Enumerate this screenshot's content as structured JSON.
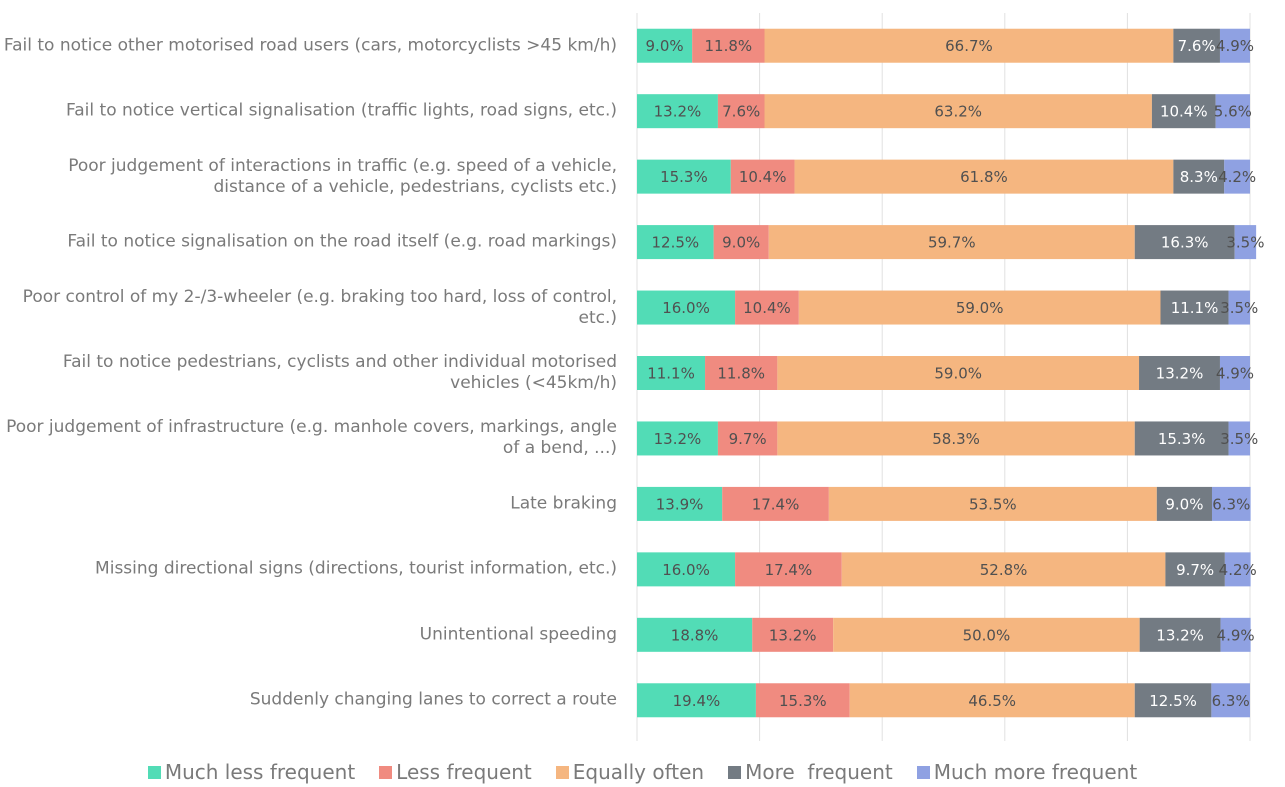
{
  "chart_data": {
    "type": "stacked_barh",
    "categories": [
      "Fail to notice other motorised road users (cars, motorcyclists >45 km/h)",
      "Fail to notice vertical signalisation (traffic lights, road signs, etc.)",
      "Poor judgement of interactions in traffic (e.g. speed of a vehicle, distance of a vehicle, pedestrians, cyclists etc.)",
      "Fail to notice signalisation on the road itself (e.g. road markings)",
      "Poor control of my 2-/3-wheeler (e.g. braking too hard, loss of control, etc.)",
      "Fail to notice pedestrians, cyclists and other individual motorised vehicles (<45km/h)",
      "Poor judgement of infrastructure (e.g. manhole covers, markings, angle of a bend, ...)",
      "Late braking",
      "Missing directional signs (directions, tourist information, etc.)",
      "Unintentional speeding",
      "Suddenly changing lanes to correct a route"
    ],
    "series": [
      {
        "name": "Much less frequent",
        "color": "#52dcb6",
        "values": [
          9.0,
          13.2,
          15.3,
          12.5,
          16.0,
          11.1,
          13.2,
          13.9,
          16.0,
          18.8,
          19.4
        ],
        "value_labels": [
          "9.0%",
          "13.2%",
          "15.3%",
          "12.5%",
          "16.0%",
          "11.1%",
          "13.2%",
          "13.9%",
          "16.0%",
          "18.8%",
          "19.4%"
        ]
      },
      {
        "name": "Less frequent",
        "color": "#f08b80",
        "values": [
          11.8,
          7.6,
          10.4,
          9.0,
          10.4,
          11.8,
          9.7,
          17.4,
          17.4,
          13.2,
          15.3
        ],
        "value_labels": [
          "11.8%",
          "7.6%",
          "10.4%",
          "9.0%",
          "10.4%",
          "11.8%",
          "9.7%",
          "17.4%",
          "17.4%",
          "13.2%",
          "15.3%"
        ]
      },
      {
        "name": "Equally often",
        "color": "#f5b680",
        "values": [
          66.7,
          63.2,
          61.8,
          59.7,
          59.0,
          59.0,
          58.3,
          53.5,
          52.8,
          50.0,
          46.5
        ],
        "value_labels": [
          "66.7%",
          "63.2%",
          "61.8%",
          "59.7%",
          "59.0%",
          "59.0%",
          "58.3%",
          "53.5%",
          "52.8%",
          "50.0%",
          "46.5%"
        ]
      },
      {
        "name": "More  frequent",
        "color": "#737b83",
        "values": [
          7.6,
          10.4,
          8.3,
          16.3,
          11.1,
          13.2,
          15.3,
          9.0,
          9.7,
          13.2,
          12.5
        ],
        "value_labels": [
          "7.6%",
          "10.4%",
          "8.3%",
          "16.3%",
          "11.1%",
          "13.2%",
          "15.3%",
          "9.0%",
          "9.7%",
          "13.2%",
          "12.5%"
        ]
      },
      {
        "name": "Much more frequent",
        "color": "#8fa1e2",
        "values": [
          4.9,
          5.6,
          4.2,
          3.5,
          3.5,
          4.9,
          3.5,
          6.3,
          4.2,
          4.9,
          6.3
        ],
        "value_labels": [
          "4.9%",
          "5.6%",
          "4.2%",
          "3.5%",
          "3.5%",
          "4.9%",
          "3.5%",
          "6.3%",
          "4.2%",
          "4.9%",
          "6.3%"
        ]
      }
    ],
    "xlim": [
      0,
      100
    ],
    "xticks": [
      0,
      20,
      40,
      60,
      80,
      100
    ],
    "grid": true,
    "legend": "bottom"
  }
}
